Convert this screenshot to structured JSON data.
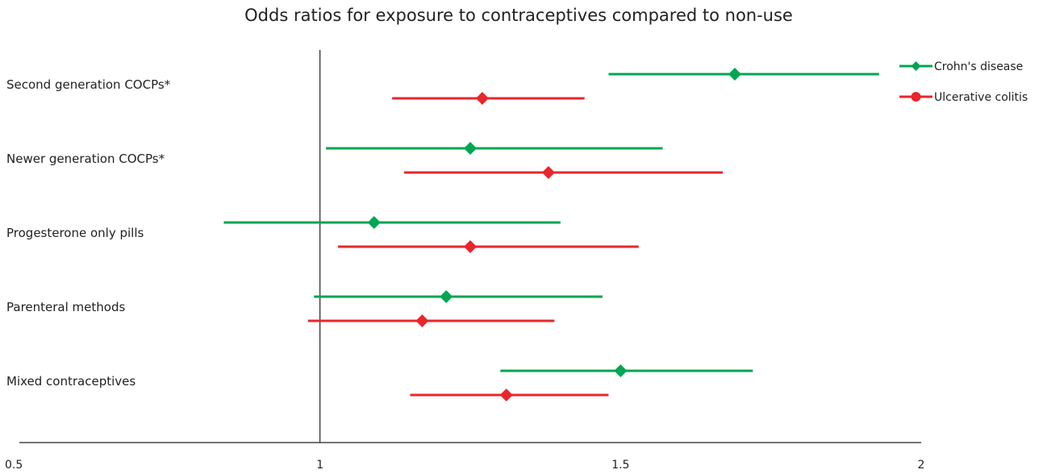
{
  "chart_data": {
    "type": "forest",
    "title": "Odds ratios for exposure to contraceptives compared to non-use",
    "xlabel": "",
    "ylabel": "",
    "xlim": [
      0.5,
      2
    ],
    "xticks": [
      0.5,
      1,
      1.5,
      2
    ],
    "x_tick_labels": [
      "0.5",
      "1",
      "1.5",
      "2"
    ],
    "reference_line": 1,
    "legend_position": "top-right",
    "grid": false,
    "categories": [
      "Second generation COCPs*",
      "Newer generation COCPs*",
      "Progesterone only pills",
      "Parenteral methods",
      "Mixed contraceptives"
    ],
    "series": [
      {
        "name": "Crohn's disease",
        "color": "#00a651",
        "marker": "diamond",
        "estimates": [
          1.69,
          1.25,
          1.09,
          1.21,
          1.5
        ],
        "lower": [
          1.48,
          1.01,
          0.84,
          0.99,
          1.3
        ],
        "upper": [
          1.93,
          1.57,
          1.4,
          1.47,
          1.72
        ]
      },
      {
        "name": "Ulcerative colitis",
        "color": "#e8262c",
        "marker": "diamond",
        "estimates": [
          1.27,
          1.38,
          1.25,
          1.17,
          1.31
        ],
        "lower": [
          1.12,
          1.14,
          1.03,
          0.98,
          1.15
        ],
        "upper": [
          1.44,
          1.67,
          1.53,
          1.39,
          1.48
        ]
      }
    ]
  }
}
